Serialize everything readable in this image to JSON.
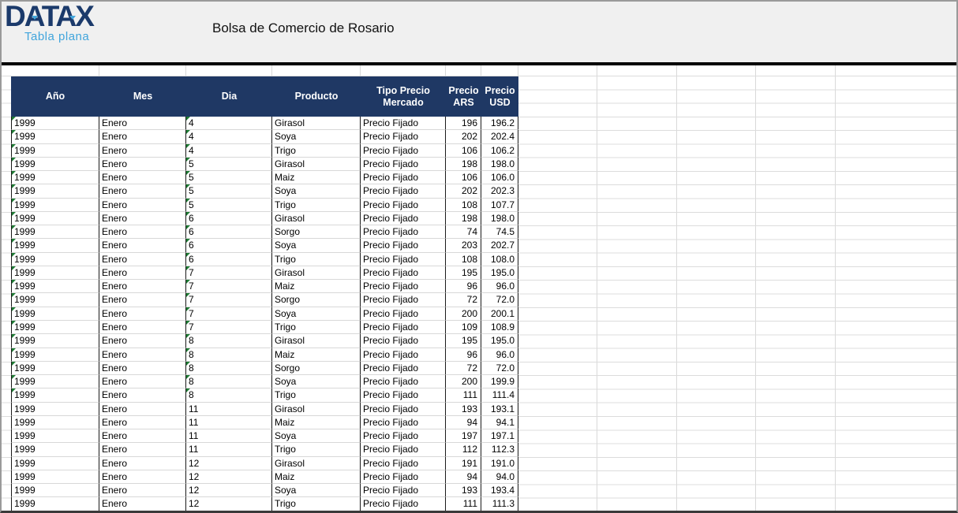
{
  "banner": {
    "logo_text": "DATAX",
    "logo_subtitle": "Tabla plana",
    "title": "Bolsa de Comercio de Rosario"
  },
  "colors": {
    "banner_bg": "#F0F0F0",
    "logo_navy": "#1B3A6B",
    "logo_accent": "#41A5DC",
    "header_bg": "#1F3864",
    "error_indicator_green": "#1E7B34"
  },
  "table": {
    "columns": [
      {
        "key": "ano",
        "label": "Año",
        "align": "left"
      },
      {
        "key": "mes",
        "label": "Mes",
        "align": "left"
      },
      {
        "key": "dia",
        "label": "Dia",
        "align": "left"
      },
      {
        "key": "producto",
        "label": "Producto",
        "align": "left"
      },
      {
        "key": "tipo",
        "label": "Tipo Precio\nMercado",
        "align": "left"
      },
      {
        "key": "ars",
        "label": "Precio\nARS",
        "align": "right"
      },
      {
        "key": "usd",
        "label": "Precio\nUSD",
        "align": "right"
      }
    ],
    "rows": [
      {
        "ano": "1999",
        "mes": "Enero",
        "dia": "4",
        "producto": "Girasol",
        "tipo": "Precio Fijado",
        "ars": "196",
        "usd": "196.2",
        "flagged": true
      },
      {
        "ano": "1999",
        "mes": "Enero",
        "dia": "4",
        "producto": "Soya",
        "tipo": "Precio Fijado",
        "ars": "202",
        "usd": "202.4",
        "flagged": true
      },
      {
        "ano": "1999",
        "mes": "Enero",
        "dia": "4",
        "producto": "Trigo",
        "tipo": "Precio Fijado",
        "ars": "106",
        "usd": "106.2",
        "flagged": true
      },
      {
        "ano": "1999",
        "mes": "Enero",
        "dia": "5",
        "producto": "Girasol",
        "tipo": "Precio Fijado",
        "ars": "198",
        "usd": "198.0",
        "flagged": true
      },
      {
        "ano": "1999",
        "mes": "Enero",
        "dia": "5",
        "producto": "Maiz",
        "tipo": "Precio Fijado",
        "ars": "106",
        "usd": "106.0",
        "flagged": true
      },
      {
        "ano": "1999",
        "mes": "Enero",
        "dia": "5",
        "producto": "Soya",
        "tipo": "Precio Fijado",
        "ars": "202",
        "usd": "202.3",
        "flagged": true
      },
      {
        "ano": "1999",
        "mes": "Enero",
        "dia": "5",
        "producto": "Trigo",
        "tipo": "Precio Fijado",
        "ars": "108",
        "usd": "107.7",
        "flagged": true
      },
      {
        "ano": "1999",
        "mes": "Enero",
        "dia": "6",
        "producto": "Girasol",
        "tipo": "Precio Fijado",
        "ars": "198",
        "usd": "198.0",
        "flagged": true
      },
      {
        "ano": "1999",
        "mes": "Enero",
        "dia": "6",
        "producto": "Sorgo",
        "tipo": "Precio Fijado",
        "ars": "74",
        "usd": "74.5",
        "flagged": true
      },
      {
        "ano": "1999",
        "mes": "Enero",
        "dia": "6",
        "producto": "Soya",
        "tipo": "Precio Fijado",
        "ars": "203",
        "usd": "202.7",
        "flagged": true
      },
      {
        "ano": "1999",
        "mes": "Enero",
        "dia": "6",
        "producto": "Trigo",
        "tipo": "Precio Fijado",
        "ars": "108",
        "usd": "108.0",
        "flagged": true
      },
      {
        "ano": "1999",
        "mes": "Enero",
        "dia": "7",
        "producto": "Girasol",
        "tipo": "Precio Fijado",
        "ars": "195",
        "usd": "195.0",
        "flagged": true
      },
      {
        "ano": "1999",
        "mes": "Enero",
        "dia": "7",
        "producto": "Maiz",
        "tipo": "Precio Fijado",
        "ars": "96",
        "usd": "96.0",
        "flagged": true
      },
      {
        "ano": "1999",
        "mes": "Enero",
        "dia": "7",
        "producto": "Sorgo",
        "tipo": "Precio Fijado",
        "ars": "72",
        "usd": "72.0",
        "flagged": true
      },
      {
        "ano": "1999",
        "mes": "Enero",
        "dia": "7",
        "producto": "Soya",
        "tipo": "Precio Fijado",
        "ars": "200",
        "usd": "200.1",
        "flagged": true
      },
      {
        "ano": "1999",
        "mes": "Enero",
        "dia": "7",
        "producto": "Trigo",
        "tipo": "Precio Fijado",
        "ars": "109",
        "usd": "108.9",
        "flagged": true
      },
      {
        "ano": "1999",
        "mes": "Enero",
        "dia": "8",
        "producto": "Girasol",
        "tipo": "Precio Fijado",
        "ars": "195",
        "usd": "195.0",
        "flagged": true
      },
      {
        "ano": "1999",
        "mes": "Enero",
        "dia": "8",
        "producto": "Maiz",
        "tipo": "Precio Fijado",
        "ars": "96",
        "usd": "96.0",
        "flagged": true
      },
      {
        "ano": "1999",
        "mes": "Enero",
        "dia": "8",
        "producto": "Sorgo",
        "tipo": "Precio Fijado",
        "ars": "72",
        "usd": "72.0",
        "flagged": true
      },
      {
        "ano": "1999",
        "mes": "Enero",
        "dia": "8",
        "producto": "Soya",
        "tipo": "Precio Fijado",
        "ars": "200",
        "usd": "199.9",
        "flagged": true
      },
      {
        "ano": "1999",
        "mes": "Enero",
        "dia": "8",
        "producto": "Trigo",
        "tipo": "Precio Fijado",
        "ars": "111",
        "usd": "111.4",
        "flagged": true
      },
      {
        "ano": "1999",
        "mes": "Enero",
        "dia": "11",
        "producto": "Girasol",
        "tipo": "Precio Fijado",
        "ars": "193",
        "usd": "193.1",
        "flagged": false
      },
      {
        "ano": "1999",
        "mes": "Enero",
        "dia": "11",
        "producto": "Maiz",
        "tipo": "Precio Fijado",
        "ars": "94",
        "usd": "94.1",
        "flagged": false
      },
      {
        "ano": "1999",
        "mes": "Enero",
        "dia": "11",
        "producto": "Soya",
        "tipo": "Precio Fijado",
        "ars": "197",
        "usd": "197.1",
        "flagged": false
      },
      {
        "ano": "1999",
        "mes": "Enero",
        "dia": "11",
        "producto": "Trigo",
        "tipo": "Precio Fijado",
        "ars": "112",
        "usd": "112.3",
        "flagged": false
      },
      {
        "ano": "1999",
        "mes": "Enero",
        "dia": "12",
        "producto": "Girasol",
        "tipo": "Precio Fijado",
        "ars": "191",
        "usd": "191.0",
        "flagged": false
      },
      {
        "ano": "1999",
        "mes": "Enero",
        "dia": "12",
        "producto": "Maiz",
        "tipo": "Precio Fijado",
        "ars": "94",
        "usd": "94.0",
        "flagged": false
      },
      {
        "ano": "1999",
        "mes": "Enero",
        "dia": "12",
        "producto": "Soya",
        "tipo": "Precio Fijado",
        "ars": "193",
        "usd": "193.4",
        "flagged": false
      },
      {
        "ano": "1999",
        "mes": "Enero",
        "dia": "12",
        "producto": "Trigo",
        "tipo": "Precio Fijado",
        "ars": "111",
        "usd": "111.3",
        "flagged": false
      }
    ]
  }
}
